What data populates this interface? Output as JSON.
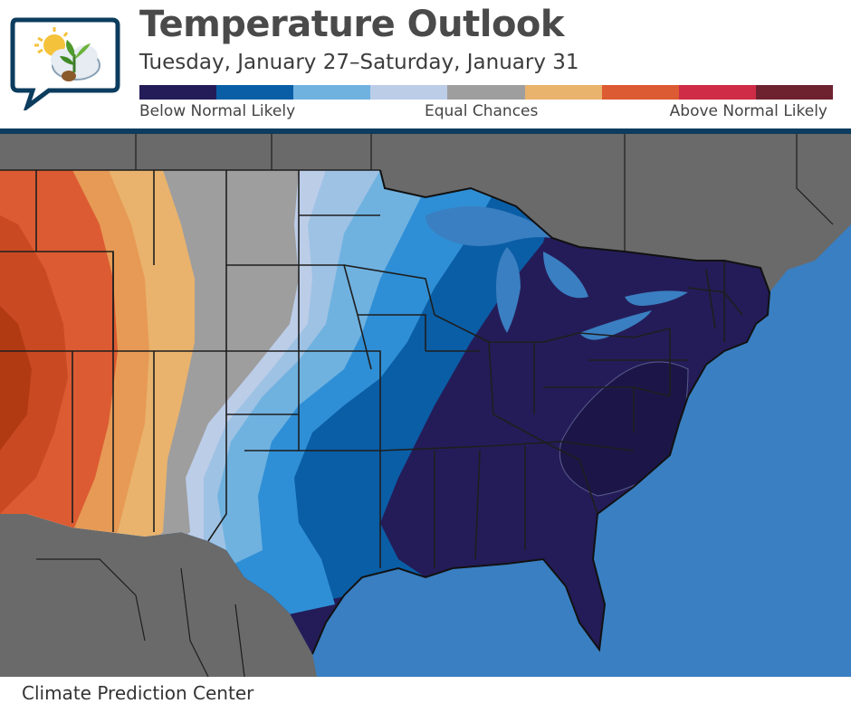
{
  "header": {
    "title": "Temperature Outlook",
    "subtitle": "Tuesday, January 27–Saturday, January 31"
  },
  "legend": {
    "colors": [
      "#241c58",
      "#0a5ea6",
      "#6fb2e0",
      "#bccde8",
      "#9e9e9e",
      "#e9b36d",
      "#dc5b32",
      "#ce2c47",
      "#6e2230"
    ],
    "below_label": "Below Normal Likely",
    "equal_label": "Equal Chances",
    "above_label": "Above Normal Likely"
  },
  "map": {
    "ocean_color": "#3a7fc1",
    "foreign_land_color": "#6a6a6a",
    "lake_color": "#3a7fc1"
  },
  "footer": {
    "credit": "Climate Prediction Center"
  }
}
